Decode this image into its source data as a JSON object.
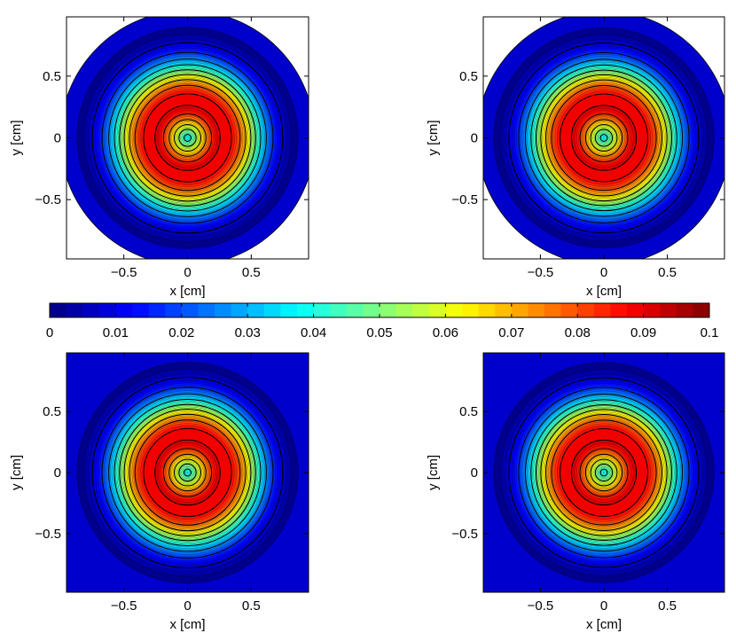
{
  "chart_data": [
    {
      "type": "contour",
      "domain": "disk",
      "xlabel": "x [cm]",
      "ylabel": "y [cm]",
      "xlim": [
        -0.95,
        0.95
      ],
      "ylim": [
        -0.98,
        0.98
      ],
      "xticks": [
        -0.5,
        0,
        0.5
      ],
      "yticks": [
        -0.5,
        0,
        0.5
      ],
      "xtick_labels": [
        "−0.5",
        "0",
        "0.5"
      ],
      "ytick_labels": [
        "−0.5",
        "0",
        "0.5"
      ],
      "peak_radius": 0.3,
      "peak_value": 0.092,
      "falloff_width": 0.3
    },
    {
      "type": "contour",
      "domain": "disk",
      "xlabel": "x [cm]",
      "ylabel": "y [cm]",
      "xlim": [
        -0.95,
        0.95
      ],
      "ylim": [
        -0.98,
        0.98
      ],
      "xticks": [
        -0.5,
        0,
        0.5
      ],
      "yticks": [
        -0.5,
        0,
        0.5
      ],
      "xtick_labels": [
        "−0.5",
        "0",
        "0.5"
      ],
      "ytick_labels": [
        "−0.5",
        "0",
        "0.5"
      ],
      "peak_radius": 0.3,
      "peak_value": 0.092,
      "falloff_width": 0.3
    },
    {
      "type": "contour",
      "domain": "square",
      "xlabel": "x [cm]",
      "ylabel": "y [cm]",
      "xlim": [
        -0.95,
        0.95
      ],
      "ylim": [
        -0.98,
        0.98
      ],
      "xticks": [
        -0.5,
        0,
        0.5
      ],
      "yticks": [
        -0.5,
        0,
        0.5
      ],
      "xtick_labels": [
        "−0.5",
        "0",
        "0.5"
      ],
      "ytick_labels": [
        "−0.5",
        "0",
        "0.5"
      ],
      "peak_radius": 0.3,
      "peak_value": 0.092,
      "falloff_width": 0.3
    },
    {
      "type": "contour",
      "domain": "square",
      "xlabel": "x [cm]",
      "ylabel": "y [cm]",
      "xlim": [
        -0.95,
        0.95
      ],
      "ylim": [
        -0.98,
        0.98
      ],
      "xticks": [
        -0.5,
        0,
        0.5
      ],
      "yticks": [
        -0.5,
        0,
        0.5
      ],
      "xtick_labels": [
        "−0.5",
        "0",
        "0.5"
      ],
      "ytick_labels": [
        "−0.5",
        "0",
        "0.5"
      ],
      "peak_radius": 0.3,
      "peak_value": 0.092,
      "falloff_width": 0.3
    }
  ],
  "colorbar": {
    "range": [
      0,
      0.1
    ],
    "ticks": [
      0,
      0.01,
      0.02,
      0.03,
      0.04,
      0.05,
      0.06,
      0.07,
      0.08,
      0.09,
      0.1
    ],
    "tick_labels": [
      "0",
      "0.01",
      "0.02",
      "0.03",
      "0.04",
      "0.05",
      "0.06",
      "0.07",
      "0.08",
      "0.09",
      "0.1"
    ],
    "colormap": "jet",
    "levels": 40
  },
  "colors": {
    "background_level": "#0000cd",
    "contour_line": "#000000"
  }
}
